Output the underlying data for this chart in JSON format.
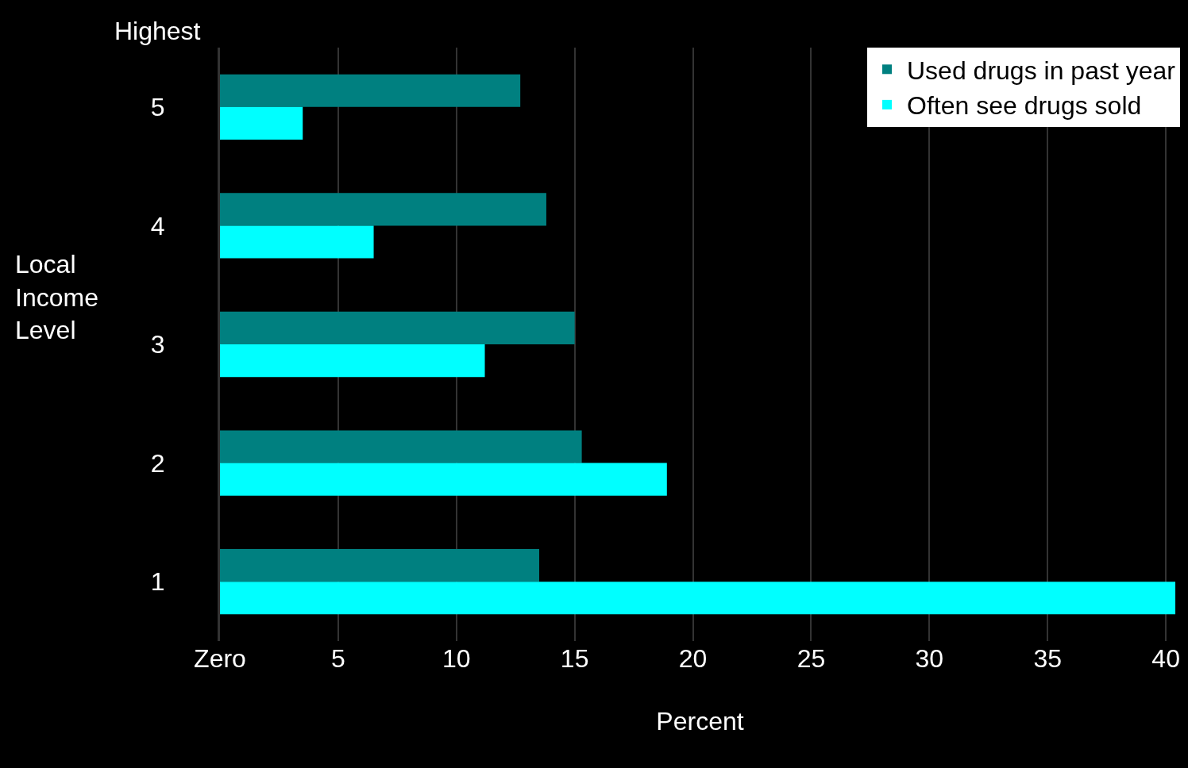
{
  "chart_data": {
    "type": "bar",
    "orientation": "horizontal",
    "xlabel": "Percent",
    "ylabel": "Local Income Level",
    "annotations": [
      "Highest"
    ],
    "categories": [
      "5",
      "4",
      "3",
      "2",
      "1"
    ],
    "series": [
      {
        "name": "Used drugs in past year",
        "color": "#008080",
        "values": [
          12.7,
          13.8,
          15.0,
          15.3,
          13.5
        ]
      },
      {
        "name": "Often see drugs sold",
        "color": "#00ffff",
        "values": [
          3.5,
          6.5,
          11.2,
          18.9,
          40.4
        ]
      }
    ],
    "xlim": [
      0,
      40.6
    ],
    "xticks": [
      {
        "value": 0,
        "label": "Zero"
      },
      5,
      10,
      15,
      20,
      25,
      30,
      35,
      40
    ],
    "grid": "x",
    "legend": "top right"
  }
}
